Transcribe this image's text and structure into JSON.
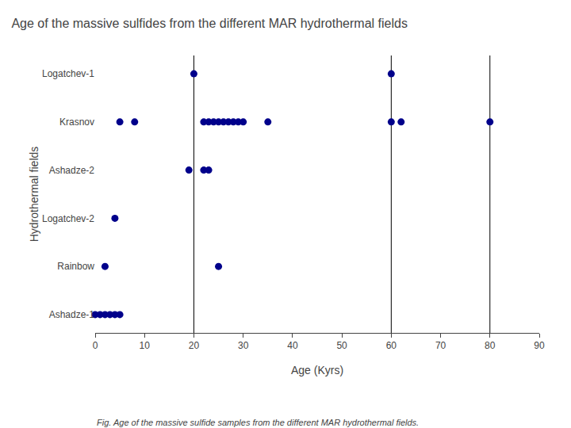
{
  "chart_data": {
    "type": "scatter",
    "title": "Age of the massive sulfides from the different MAR hydrothermal fields",
    "caption": "Fig. Age of the massive sulfide samples from the different MAR hydrothermal fields.",
    "x_label": "Age (Kyrs)",
    "y_label": "Hydrothermal fields",
    "categories": [
      "Ashadze-1",
      "Rainbow",
      "Logatchev-2",
      "Ashadze-2",
      "Krasnov",
      "Logatchev-1"
    ],
    "values": [
      [
        0,
        1,
        2,
        3,
        4,
        5
      ],
      [
        2,
        25
      ],
      [
        4
      ],
      [
        19,
        22,
        23
      ],
      [
        5,
        8,
        22,
        23,
        24,
        25,
        26,
        27,
        28,
        29,
        30,
        35,
        60,
        62,
        80
      ],
      [
        20,
        60
      ]
    ],
    "color": "#00008B",
    "xlim": [
      0,
      90
    ],
    "xticks": [
      0,
      10,
      20,
      30,
      40,
      50,
      60,
      70,
      80,
      90
    ],
    "vertical_lines": [
      20,
      60,
      80
    ],
    "grid": false
  }
}
